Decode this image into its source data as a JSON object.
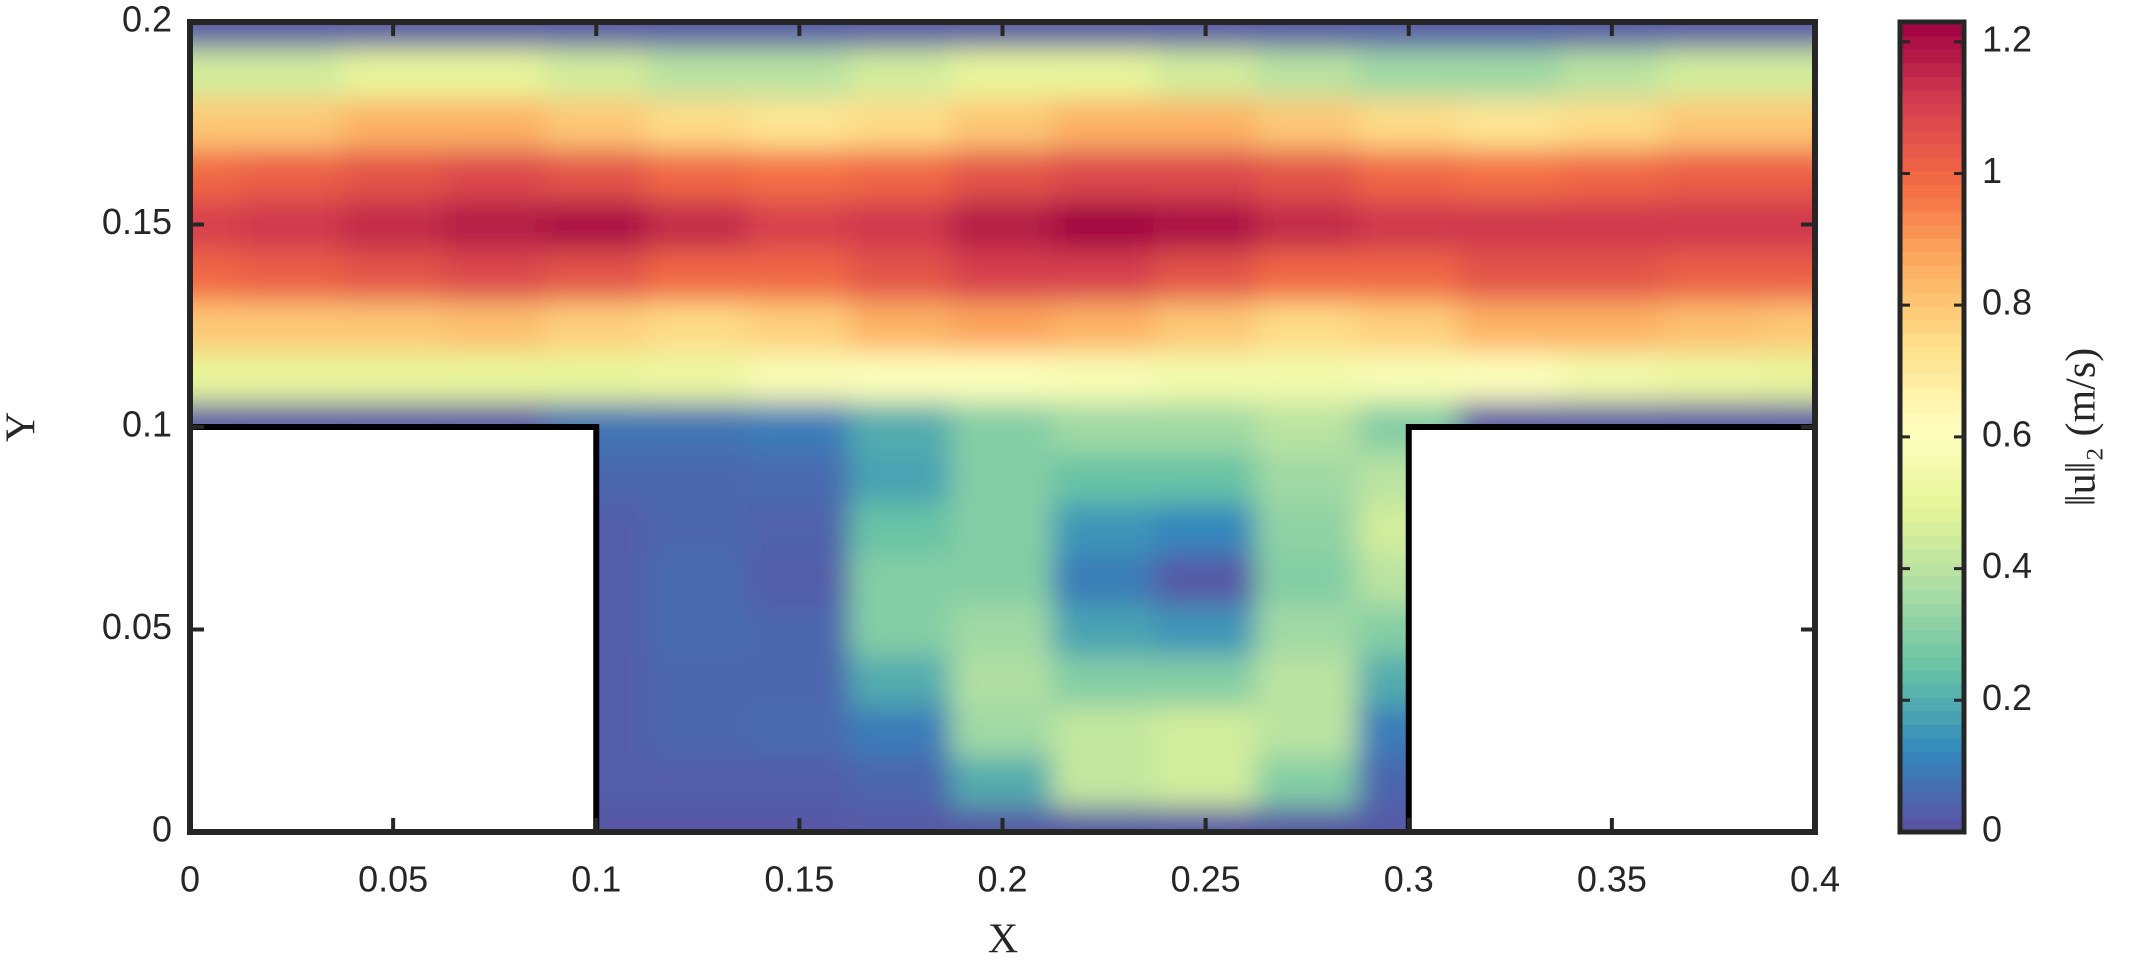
{
  "chart_data": {
    "type": "contour",
    "xlabel": "X",
    "ylabel": "Y",
    "colorbar_label": "‖u‖₂ (m/s)",
    "xlim": [
      0,
      0.4
    ],
    "ylim": [
      0,
      0.2
    ],
    "xticks": [
      0,
      0.05,
      0.1,
      0.15,
      0.2,
      0.25,
      0.3,
      0.35,
      0.4
    ],
    "yticks": [
      0,
      0.05,
      0.1,
      0.15,
      0.2
    ],
    "clim": [
      0,
      1.23
    ],
    "cticks": [
      0,
      0.2,
      0.4,
      0.6,
      0.8,
      1,
      1.2
    ],
    "colormap": [
      "#5e4fa2",
      "#3288bd",
      "#66c2a5",
      "#abdda4",
      "#e6f598",
      "#ffffbf",
      "#fee08b",
      "#fdae61",
      "#f46d43",
      "#d53e4f",
      "#9e0142"
    ],
    "x": [
      0,
      0.025,
      0.05,
      0.075,
      0.1,
      0.125,
      0.15,
      0.175,
      0.2,
      0.225,
      0.25,
      0.275,
      0.3,
      0.325,
      0.35,
      0.375,
      0.4
    ],
    "y": [
      0,
      0.0125,
      0.025,
      0.0375,
      0.05,
      0.0625,
      0.075,
      0.0875,
      0.1,
      0.1125,
      0.125,
      0.1375,
      0.15,
      0.1625,
      0.175,
      0.1875,
      0.2
    ],
    "z": [
      [
        null,
        null,
        null,
        null,
        0.02,
        0.02,
        0.02,
        0.02,
        0.02,
        0.02,
        0.02,
        0.02,
        0.02,
        null,
        null,
        null,
        null
      ],
      [
        null,
        null,
        null,
        null,
        0.03,
        0.03,
        0.03,
        0.05,
        0.2,
        0.42,
        0.45,
        0.3,
        0.05,
        null,
        null,
        null,
        null
      ],
      [
        null,
        null,
        null,
        null,
        0.03,
        0.05,
        0.06,
        0.1,
        0.35,
        0.42,
        0.45,
        0.4,
        0.1,
        null,
        null,
        null,
        null
      ],
      [
        null,
        null,
        null,
        null,
        0.03,
        0.05,
        0.05,
        0.2,
        0.38,
        0.3,
        0.3,
        0.4,
        0.2,
        null,
        null,
        null,
        null
      ],
      [
        null,
        null,
        null,
        null,
        0.03,
        0.06,
        0.05,
        0.3,
        0.35,
        0.18,
        0.15,
        0.35,
        0.3,
        null,
        null,
        null,
        null
      ],
      [
        null,
        null,
        null,
        null,
        0.03,
        0.06,
        0.03,
        0.3,
        0.3,
        0.1,
        0.02,
        0.3,
        0.4,
        null,
        null,
        null,
        null
      ],
      [
        null,
        null,
        null,
        null,
        0.03,
        0.05,
        0.04,
        0.25,
        0.3,
        0.15,
        0.12,
        0.32,
        0.45,
        null,
        null,
        null,
        null
      ],
      [
        null,
        null,
        null,
        null,
        0.05,
        0.05,
        0.06,
        0.18,
        0.3,
        0.25,
        0.25,
        0.35,
        0.4,
        null,
        null,
        null,
        null
      ],
      [
        0.02,
        0.02,
        0.02,
        0.02,
        0.08,
        0.08,
        0.1,
        0.2,
        0.3,
        0.35,
        0.35,
        0.4,
        0.3,
        0.02,
        0.02,
        0.02,
        0.02
      ],
      [
        0.5,
        0.5,
        0.5,
        0.5,
        0.5,
        0.52,
        0.58,
        0.6,
        0.6,
        0.58,
        0.55,
        0.55,
        0.58,
        0.6,
        0.55,
        0.52,
        0.5
      ],
      [
        0.8,
        0.8,
        0.8,
        0.82,
        0.78,
        0.75,
        0.78,
        0.85,
        0.88,
        0.85,
        0.8,
        0.75,
        0.78,
        0.85,
        0.85,
        0.82,
        0.8
      ],
      [
        1.0,
        1.02,
        1.05,
        1.08,
        1.05,
        1.0,
        1.0,
        1.05,
        1.1,
        1.1,
        1.05,
        1.0,
        1.0,
        1.05,
        1.05,
        1.02,
        1.02
      ],
      [
        1.1,
        1.12,
        1.15,
        1.18,
        1.2,
        1.15,
        1.1,
        1.12,
        1.18,
        1.22,
        1.2,
        1.15,
        1.12,
        1.12,
        1.12,
        1.12,
        1.12
      ],
      [
        1.0,
        1.02,
        1.05,
        1.08,
        1.05,
        1.0,
        0.98,
        1.0,
        1.05,
        1.08,
        1.08,
        1.05,
        1.0,
        0.98,
        1.0,
        1.02,
        1.02
      ],
      [
        0.8,
        0.8,
        0.85,
        0.85,
        0.8,
        0.75,
        0.72,
        0.75,
        0.8,
        0.85,
        0.85,
        0.8,
        0.75,
        0.72,
        0.75,
        0.8,
        0.8
      ],
      [
        0.45,
        0.45,
        0.5,
        0.5,
        0.45,
        0.4,
        0.4,
        0.45,
        0.5,
        0.5,
        0.45,
        0.4,
        0.35,
        0.35,
        0.4,
        0.45,
        0.45
      ],
      [
        0.02,
        0.02,
        0.02,
        0.02,
        0.02,
        0.02,
        0.02,
        0.02,
        0.02,
        0.02,
        0.02,
        0.02,
        0.02,
        0.02,
        0.02,
        0.02,
        0.02
      ]
    ]
  }
}
